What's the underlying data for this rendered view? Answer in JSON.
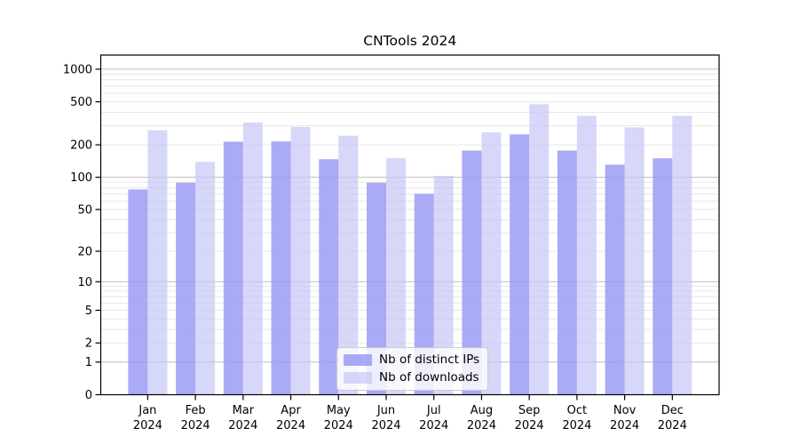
{
  "figure": {
    "title": "CNTools 2024",
    "background": "#ffffff",
    "text_color": "#000000",
    "spine_color": "#000000",
    "grid_major_color": "#bdbdbd",
    "grid_minor_color": "#e7e7e7"
  },
  "chart_data": {
    "type": "bar",
    "title": "CNTools 2024",
    "xlabel": "",
    "ylabel": "",
    "scale": "log1p",
    "grid": "on",
    "legend_position": "lower center",
    "categories": [
      {
        "month": "Jan",
        "year": "2024"
      },
      {
        "month": "Feb",
        "year": "2024"
      },
      {
        "month": "Mar",
        "year": "2024"
      },
      {
        "month": "Apr",
        "year": "2024"
      },
      {
        "month": "May",
        "year": "2024"
      },
      {
        "month": "Jun",
        "year": "2024"
      },
      {
        "month": "Jul",
        "year": "2024"
      },
      {
        "month": "Aug",
        "year": "2024"
      },
      {
        "month": "Sep",
        "year": "2024"
      },
      {
        "month": "Oct",
        "year": "2024"
      },
      {
        "month": "Nov",
        "year": "2024"
      },
      {
        "month": "Dec",
        "year": "2024"
      }
    ],
    "series": [
      {
        "name": "Nb of distinct IPs",
        "color": "#9b9bf5",
        "fill_opacity": 0.85,
        "values": [
          77,
          89,
          214,
          215,
          147,
          89,
          70,
          177,
          250,
          177,
          131,
          150
        ]
      },
      {
        "name": "Nb of downloads",
        "color": "#c6c6f7",
        "fill_opacity": 0.7,
        "values": [
          273,
          139,
          322,
          293,
          243,
          151,
          103,
          261,
          475,
          371,
          290,
          371
        ]
      }
    ],
    "y_ticks": [
      1000,
      500,
      200,
      100,
      50,
      20,
      10,
      5,
      2,
      1,
      0
    ],
    "ylim": [
      0,
      1350
    ],
    "grid_major_at": [
      1,
      10,
      100,
      1000
    ],
    "grid_minor_base": [
      2,
      3,
      4,
      5,
      6,
      7,
      8,
      9
    ]
  }
}
